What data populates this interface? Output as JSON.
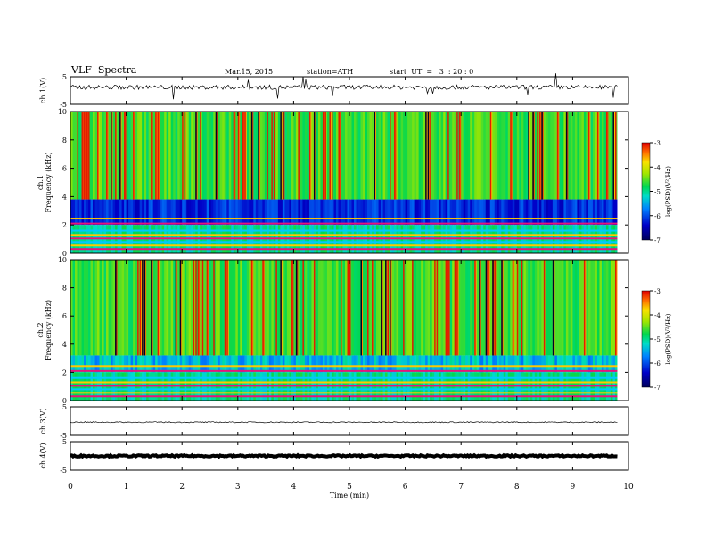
{
  "header": {
    "title": "VLF  Spectra",
    "date": "Mar.15, 2015",
    "station": "station=ATH",
    "start": "start  UT  =   3  : 20 : 0"
  },
  "chart_data": [
    {
      "type": "line",
      "ylabel": "ch.1(V)",
      "ylim": [
        -5,
        5
      ],
      "yticks": [
        5,
        -5
      ],
      "xlim": [
        0,
        10
      ],
      "data_end_min": 9.8,
      "trace": "noisy waveform near +1.2 V with sporadic spikes",
      "baseline_v": 1.2
    },
    {
      "type": "heatmap",
      "ylabel": "ch.1\nFrequency  (kHz)",
      "ylim": [
        0,
        10
      ],
      "yticks": [
        0,
        2,
        4,
        6,
        8,
        10
      ],
      "xlim": [
        0,
        10
      ],
      "data_end_min": 9.8,
      "colorbar": {
        "label": "log(PSD)(V²/Hz)",
        "range": [
          -7,
          -3
        ],
        "ticks": [
          -3,
          -4,
          -5,
          -6,
          -7
        ]
      }
    },
    {
      "type": "heatmap",
      "ylabel": "ch.2\nFrequency  (kHz)",
      "ylim": [
        0,
        10
      ],
      "yticks": [
        0,
        2,
        4,
        6,
        8,
        10
      ],
      "xlim": [
        0,
        10
      ],
      "data_end_min": 9.8,
      "colorbar": {
        "label": "log(PSD)(V²/Hz)",
        "range": [
          -7,
          -3
        ],
        "ticks": [
          -3,
          -4,
          -5,
          -6,
          -7
        ]
      }
    },
    {
      "type": "line",
      "ylabel": "ch.3(V)",
      "ylim": [
        -5,
        5
      ],
      "yticks": [
        5,
        -5
      ],
      "xlim": [
        0,
        10
      ],
      "data_end_min": 9.8,
      "baseline_v": -0.4
    },
    {
      "type": "line",
      "ylabel": "ch.4(V)",
      "ylim": [
        -5,
        5
      ],
      "yticks": [
        5,
        -5
      ],
      "xlim": [
        0,
        10
      ],
      "data_end_min": 9.8,
      "baseline_v": 0.0
    }
  ],
  "xaxis": {
    "label": "Time  (min)",
    "ticks": [
      0,
      1,
      2,
      3,
      4,
      5,
      6,
      7,
      8,
      9,
      10
    ]
  }
}
